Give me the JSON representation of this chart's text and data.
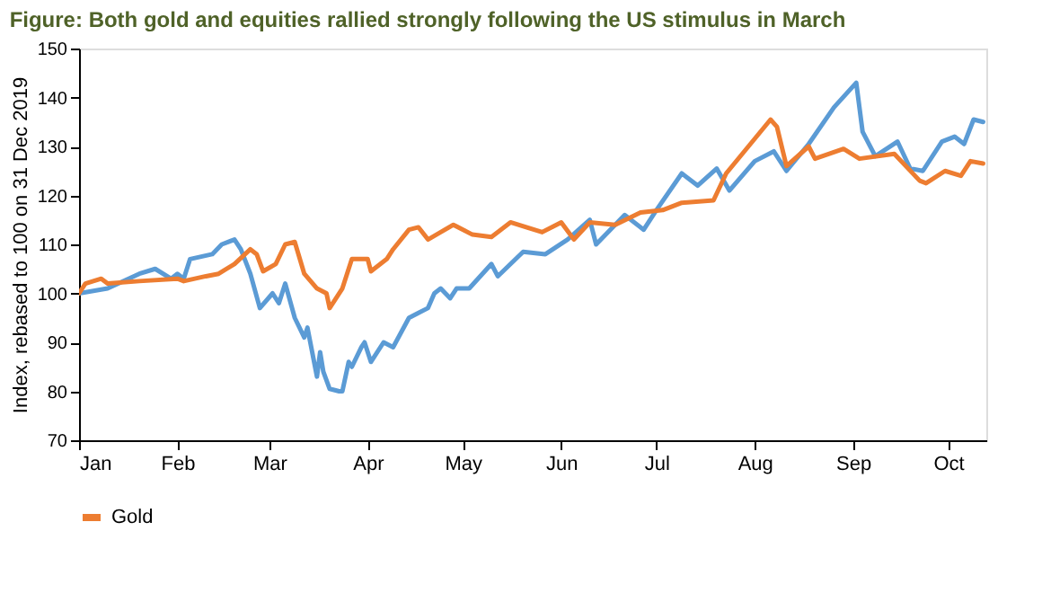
{
  "chart_data": {
    "type": "line",
    "title": "Figure: Both gold and equities rallied strongly following the US stimulus in March",
    "ylabel": "Index, rebased to 100 on 31 Dec 2019",
    "xlim": [
      "--01-01",
      "--10-13"
    ],
    "xticks": [
      {
        "value": "--01-01",
        "label": "Jan"
      },
      {
        "value": "--02-01",
        "label": "Feb"
      },
      {
        "value": "--03-01",
        "label": "Mar"
      },
      {
        "value": "--04-01",
        "label": "Apr"
      },
      {
        "value": "--05-01",
        "label": "May"
      },
      {
        "value": "--06-01",
        "label": "Jun"
      },
      {
        "value": "--07-01",
        "label": "Jul"
      },
      {
        "value": "--08-01",
        "label": "Aug"
      },
      {
        "value": "--09-01",
        "label": "Sep"
      },
      {
        "value": "--10-01",
        "label": "Oct"
      }
    ],
    "ylim": [
      70,
      150
    ],
    "yticks": [
      70,
      80,
      90,
      100,
      110,
      120,
      130,
      140,
      150
    ],
    "grid": false,
    "legend": "bottom",
    "marker": "none",
    "line_style": "solid",
    "series": [
      {
        "color": "#5b9bd5",
        "x": [
          "--01-01",
          "--01-10",
          "--01-20",
          "--01-25",
          "--01-30",
          "--02-01",
          "--02-03",
          "--02-05",
          "--02-12",
          "--02-15",
          "--02-19",
          "--02-21",
          "--02-24",
          "--02-27",
          "--03-02",
          "--03-04",
          "--03-06",
          "--03-09",
          "--03-12",
          "--03-13",
          "--03-16",
          "--03-17",
          "--03-18",
          "--03-20",
          "--03-23",
          "--03-24",
          "--03-26",
          "--03-27",
          "--03-30",
          "--03-31",
          "--04-02",
          "--04-06",
          "--04-09",
          "--04-14",
          "--04-17",
          "--04-20",
          "--04-22",
          "--04-24",
          "--04-27",
          "--04-29",
          "--05-03",
          "--05-10",
          "--05-12",
          "--05-20",
          "--05-27",
          "--06-03",
          "--06-10",
          "--06-12",
          "--06-21",
          "--06-27",
          "--07-01",
          "--07-09",
          "--07-14",
          "--07-20",
          "--07-24",
          "--08-01",
          "--08-07",
          "--08-11",
          "--08-18",
          "--08-26",
          "--09-02",
          "--09-04",
          "--09-08",
          "--09-15",
          "--09-19",
          "--09-23",
          "--09-29",
          "--10-03",
          "--10-06",
          "--10-09",
          "--10-12"
        ],
        "values": [
          100,
          101,
          104,
          105,
          103,
          104,
          103,
          107,
          108,
          110,
          111,
          109,
          104,
          97,
          100,
          98,
          102,
          95,
          91,
          93,
          83,
          88,
          84,
          80.5,
          80,
          80,
          86,
          85,
          89,
          90,
          86,
          90,
          89,
          95,
          96,
          97,
          100,
          101,
          99,
          101,
          101,
          106,
          103.5,
          108.5,
          108,
          111,
          115,
          110,
          116,
          113,
          117,
          124.5,
          122,
          125.5,
          121,
          127,
          129,
          125,
          130.5,
          138,
          143,
          133,
          128,
          131,
          125.5,
          125,
          131,
          132,
          130.5,
          135.5,
          135
        ]
      },
      {
        "name": "Gold",
        "color": "#ed7d31",
        "x": [
          "--01-01",
          "--01-03",
          "--01-08",
          "--01-10",
          "--01-20",
          "--02-01",
          "--02-03",
          "--02-10",
          "--02-14",
          "--02-19",
          "--02-24",
          "--02-26",
          "--02-28",
          "--03-03",
          "--03-06",
          "--03-09",
          "--03-12",
          "--03-16",
          "--03-19",
          "--03-20",
          "--03-24",
          "--03-27",
          "--04-01",
          "--04-02",
          "--04-07",
          "--04-09",
          "--04-14",
          "--04-17",
          "--04-20",
          "--04-24",
          "--04-28",
          "--05-04",
          "--05-10",
          "--05-16",
          "--05-26",
          "--06-01",
          "--06-05",
          "--06-10",
          "--06-18",
          "--06-26",
          "--07-03",
          "--07-09",
          "--07-19",
          "--07-23",
          "--07-30",
          "--08-06",
          "--08-08",
          "--08-11",
          "--08-18",
          "--08-20",
          "--08-29",
          "--09-03",
          "--09-14",
          "--09-22",
          "--09-24",
          "--09-30",
          "--10-05",
          "--10-08",
          "--10-12"
        ],
        "values": [
          100,
          102,
          103,
          102,
          102.5,
          103,
          102.5,
          103.5,
          104,
          106,
          109,
          108,
          104.5,
          106,
          110,
          110.5,
          104,
          101,
          100,
          97,
          101,
          107,
          107,
          104.5,
          107,
          109,
          113,
          113.5,
          111,
          112.5,
          114,
          112,
          111.5,
          114.5,
          112.5,
          114.5,
          111,
          114.5,
          114,
          116.5,
          117,
          118.5,
          119,
          124.5,
          130,
          135.5,
          134,
          126,
          130,
          127.5,
          129.5,
          127.5,
          128.5,
          123,
          122.5,
          125,
          124,
          127,
          126.5
        ]
      }
    ]
  }
}
